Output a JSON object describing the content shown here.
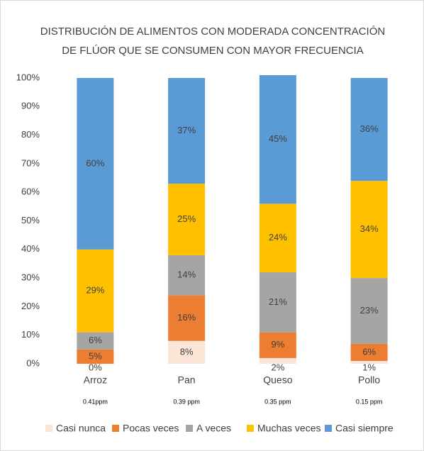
{
  "chart_data": {
    "type": "stacked_bar",
    "title": [
      "DISTRIBUCIÓN DE ALIMENTOS CON MODERADA CONCENTRACIÓN",
      "DE FLÚOR QUE SE CONSUMEN CON MAYOR FRECUENCIA"
    ],
    "categories": [
      "Arroz",
      "Pan",
      "Queso",
      "Pollo"
    ],
    "category_notes": [
      "0.41ppm",
      "0.39 ppm",
      "0.35 ppm",
      "0.15 ppm"
    ],
    "series": [
      {
        "name": "Casi nunca",
        "color": "#fbe5d6",
        "values": [
          0,
          8,
          2,
          1
        ],
        "value_labels": [
          "0%",
          "8%",
          "2%",
          "1%"
        ]
      },
      {
        "name": "Pocas veces",
        "color": "#ed7d31",
        "values": [
          5,
          16,
          9,
          6
        ],
        "value_labels": [
          "5%",
          "16%",
          "9%",
          "6%"
        ]
      },
      {
        "name": "A veces",
        "color": "#a5a5a5",
        "values": [
          6,
          14,
          21,
          23
        ],
        "value_labels": [
          "6%",
          "14%",
          "21%",
          "23%"
        ]
      },
      {
        "name": "Muchas veces",
        "color": "#ffc000",
        "values": [
          29,
          25,
          24,
          34
        ],
        "value_labels": [
          "29%",
          "25%",
          "24%",
          "34%"
        ]
      },
      {
        "name": "Casi siempre",
        "color": "#5b9bd5",
        "values": [
          60,
          37,
          45,
          36
        ],
        "value_labels": [
          "60%",
          "37%",
          "45%",
          "36%"
        ]
      }
    ],
    "ylim": [
      0,
      100
    ],
    "yticks": [
      {
        "value": 0,
        "label": "0%"
      },
      {
        "value": 10,
        "label": "10%"
      },
      {
        "value": 20,
        "label": "20%"
      },
      {
        "value": 30,
        "label": "30%"
      },
      {
        "value": 40,
        "label": "40%"
      },
      {
        "value": 50,
        "label": "50%"
      },
      {
        "value": 60,
        "label": "60%"
      },
      {
        "value": 70,
        "label": "70%"
      },
      {
        "value": 80,
        "label": "80%"
      },
      {
        "value": 90,
        "label": "90%"
      },
      {
        "value": 100,
        "label": "100%"
      }
    ],
    "grid": false,
    "legend": "bottom"
  }
}
